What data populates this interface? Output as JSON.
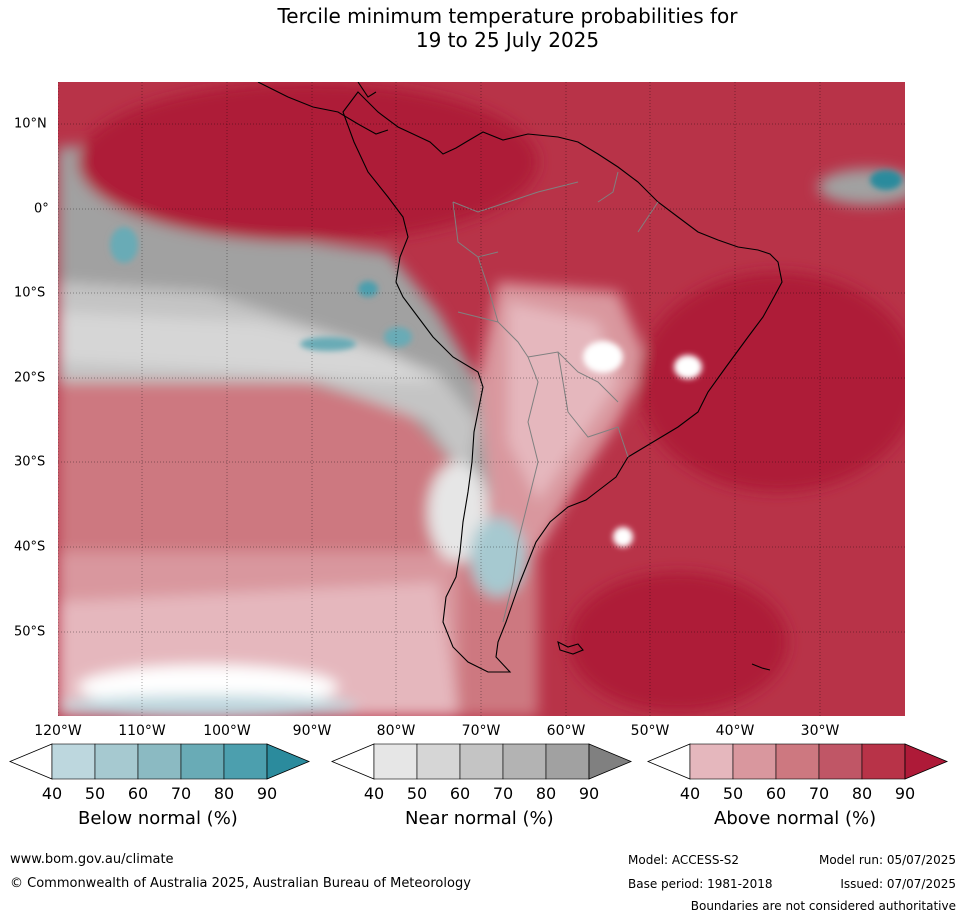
{
  "title": {
    "line1": "Tercile minimum temperature probabilities for",
    "line2": "19 to 25 July 2025"
  },
  "map": {
    "region": "South America",
    "longitude_labels": [
      "120°W",
      "110°W",
      "100°W",
      "90°W",
      "80°W",
      "70°W",
      "60°W",
      "50°W",
      "40°W",
      "30°W"
    ],
    "latitude_labels": [
      "10°N",
      "0°",
      "10°S",
      "20°S",
      "30°S",
      "40°S",
      "50°S"
    ],
    "grid": true
  },
  "colorbars": [
    {
      "label": "Below normal (%)",
      "ticks": [
        "40",
        "50",
        "60",
        "70",
        "80",
        "90"
      ],
      "colors": [
        "#ffffff",
        "#bdd7de",
        "#a6c9d0",
        "#8bbac2",
        "#69abb6",
        "#4c9fae",
        "#2b8b9d"
      ]
    },
    {
      "label": "Near normal (%)",
      "ticks": [
        "40",
        "50",
        "60",
        "70",
        "80",
        "90"
      ],
      "colors": [
        "#ffffff",
        "#e6e6e6",
        "#d6d6d6",
        "#c4c4c4",
        "#b3b3b3",
        "#a1a1a1",
        "#808080"
      ]
    },
    {
      "label": "Above normal (%)",
      "ticks": [
        "40",
        "50",
        "60",
        "70",
        "80",
        "90"
      ],
      "colors": [
        "#ffffff",
        "#e5b7bd",
        "#d9979e",
        "#cd7880",
        "#c05666",
        "#b83348",
        "#ae1a38"
      ]
    }
  ],
  "footer": {
    "url": "www.bom.gov.au/climate",
    "copyright": "© Commonwealth of Australia 2025, Australian Bureau of Meteorology",
    "model": "Model: ACCESS-S2",
    "base_period": "Base period: 1981-2018",
    "model_run": "Model run: 05/07/2025",
    "issued": "Issued: 07/07/2025",
    "disclaimer": "Boundaries are not considered authoritative"
  }
}
